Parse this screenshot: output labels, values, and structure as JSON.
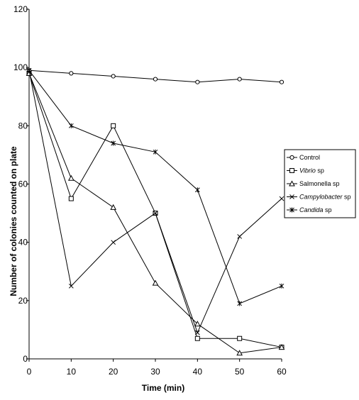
{
  "chart_data": {
    "type": "line",
    "title": "",
    "xlabel": "Time (min)",
    "ylabel": "Number of colonies counted on plate",
    "x": [
      0,
      10,
      20,
      30,
      40,
      50,
      60
    ],
    "xlim": [
      0,
      60
    ],
    "ylim": [
      0,
      120
    ],
    "xticks": [
      "0",
      "10",
      "20",
      "30",
      "40",
      "50",
      "60"
    ],
    "yticks": [
      "0",
      "20",
      "40",
      "60",
      "80",
      "100",
      "120"
    ],
    "grid": false,
    "legend_position": "right",
    "series": [
      {
        "name": "Control",
        "italic": "",
        "suffix": "",
        "marker": "circle",
        "values": [
          99,
          98,
          97,
          96,
          95,
          96,
          95
        ]
      },
      {
        "name": "Vibrio sp",
        "italic": "Vibrio",
        "suffix": " sp",
        "marker": "square",
        "values": [
          98,
          55,
          80,
          50,
          7,
          7,
          4
        ]
      },
      {
        "name": "Salmonella sp",
        "italic": "",
        "suffix": "",
        "marker": "triangle",
        "values": [
          98,
          62,
          52,
          26,
          12,
          2,
          4
        ]
      },
      {
        "name": "Campylobacter sp",
        "italic": "Campylobacter",
        "suffix": " sp",
        "marker": "x",
        "values": [
          99,
          25,
          40,
          50,
          9,
          42,
          55
        ]
      },
      {
        "name": "Candida sp",
        "italic": "Candida",
        "suffix": " sp",
        "marker": "star",
        "values": [
          99,
          80,
          74,
          71,
          58,
          19,
          25
        ]
      }
    ]
  }
}
